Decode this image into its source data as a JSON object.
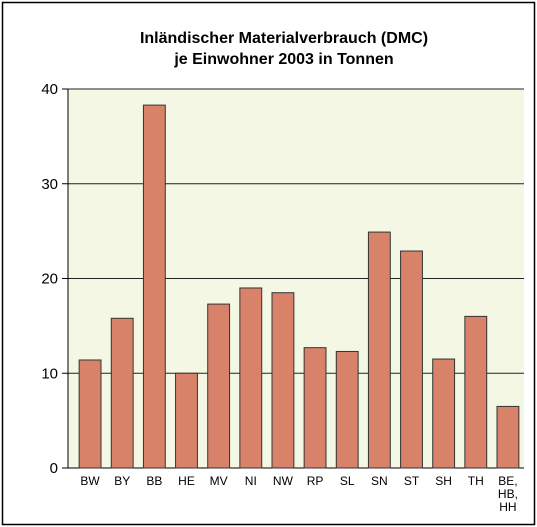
{
  "chart_data": {
    "type": "bar",
    "title": [
      "Inländischer Materialverbrauch (DMC)",
      "je Einwohner 2003 in Tonnen"
    ],
    "categories": [
      "BW",
      "BY",
      "BB",
      "HE",
      "MV",
      "NI",
      "NW",
      "RP",
      "SL",
      "SN",
      "ST",
      "SH",
      "TH",
      "BE, HB, HH"
    ],
    "values": [
      11.4,
      15.8,
      38.3,
      10.0,
      17.3,
      19.0,
      18.5,
      12.7,
      12.3,
      24.9,
      22.9,
      11.5,
      16.0,
      6.5
    ],
    "color": "#d9826a",
    "ylim": [
      0,
      40
    ],
    "yticks": [
      0,
      10,
      20,
      30,
      40
    ],
    "grid": true
  }
}
